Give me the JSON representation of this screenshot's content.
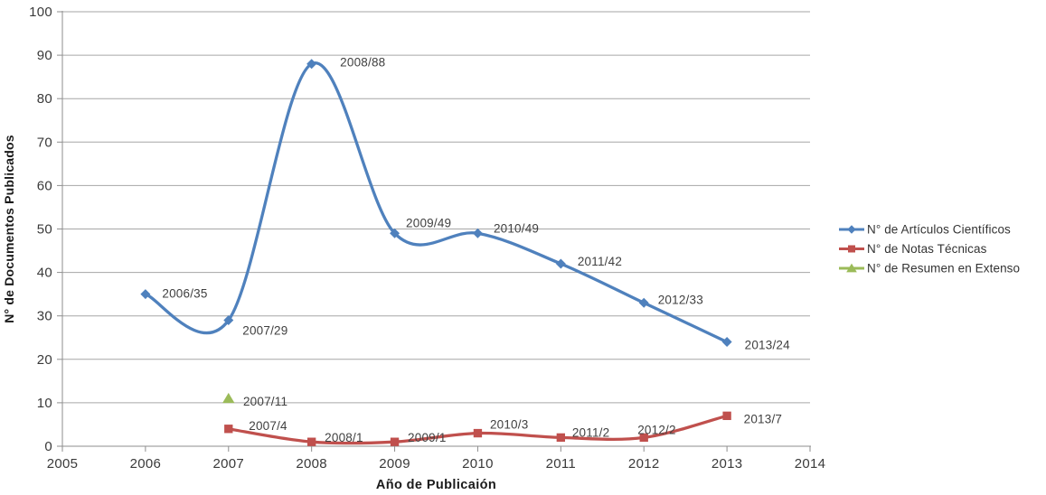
{
  "chart_data": {
    "type": "line",
    "title": "",
    "xlabel": "Año de Publicaión",
    "ylabel": "N° de Documentos Publicados",
    "xlim": [
      2005,
      2014
    ],
    "ylim": [
      0,
      100
    ],
    "x_ticks": [
      "2005",
      "2006",
      "2007",
      "2008",
      "2009",
      "2010",
      "2011",
      "2012",
      "2013",
      "2014"
    ],
    "y_ticks": [
      0,
      10,
      20,
      30,
      40,
      50,
      60,
      70,
      80,
      90,
      100
    ],
    "grid": "horizontal",
    "legend_position": "right",
    "series": [
      {
        "name": "N° de Artículos Científicos",
        "color": "#4F81BD",
        "marker": "diamond",
        "smooth": true,
        "points": [
          {
            "x": 2006,
            "y": 35,
            "label": "2006/35"
          },
          {
            "x": 2007,
            "y": 29,
            "label": "2007/29"
          },
          {
            "x": 2008,
            "y": 88,
            "label": "2008/88"
          },
          {
            "x": 2009,
            "y": 49,
            "label": "2009/49"
          },
          {
            "x": 2010,
            "y": 49,
            "label": "2010/49"
          },
          {
            "x": 2011,
            "y": 42,
            "label": "2011/42"
          },
          {
            "x": 2012,
            "y": 33,
            "label": "2012/33"
          },
          {
            "x": 2013,
            "y": 24,
            "label": "2013/24"
          }
        ]
      },
      {
        "name": "N° de Notas Técnicas",
        "color": "#C0504D",
        "marker": "square",
        "smooth": true,
        "points": [
          {
            "x": 2007,
            "y": 4,
            "label": "2007/4"
          },
          {
            "x": 2008,
            "y": 1,
            "label": "2008/1"
          },
          {
            "x": 2009,
            "y": 1,
            "label": "2009/1"
          },
          {
            "x": 2010,
            "y": 3,
            "label": "2010/3"
          },
          {
            "x": 2011,
            "y": 2,
            "label": "2011/2"
          },
          {
            "x": 2012,
            "y": 2,
            "label": "2012/2"
          },
          {
            "x": 2013,
            "y": 7,
            "label": "2013/7"
          }
        ]
      },
      {
        "name": "N° de Resumen en Extenso",
        "color": "#9BBB59",
        "marker": "triangle",
        "smooth": false,
        "points": [
          {
            "x": 2007,
            "y": 11,
            "label": "2007/11"
          }
        ]
      }
    ]
  },
  "colors": {
    "background": "#FFFFFF",
    "gridline": "#A6A6A6",
    "axis": "#8E8E8E",
    "tick_text": "#3A3A3A",
    "data_label_text": "#404040",
    "legend_text": "#333333"
  }
}
